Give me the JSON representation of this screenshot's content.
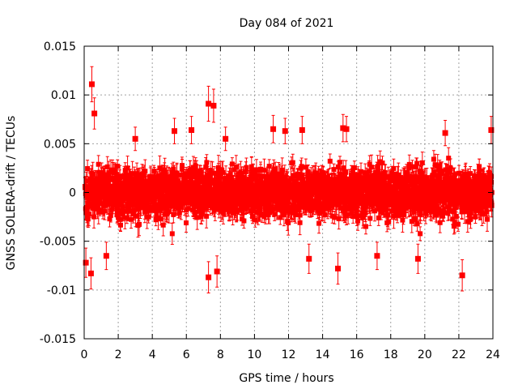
{
  "chart_data": {
    "type": "scatter",
    "title": "Day 084 of 2021",
    "xlabel": "GPS time / hours",
    "ylabel": "GNSS SOLERA-drift / TECUs",
    "xlim": [
      0,
      24
    ],
    "ylim": [
      -0.015,
      0.015
    ],
    "x_ticks": [
      0,
      2,
      4,
      6,
      8,
      10,
      12,
      14,
      16,
      18,
      20,
      22,
      24
    ],
    "x_tick_labels": [
      "0",
      "2",
      "4",
      "6",
      "8",
      "10",
      "12",
      "14",
      "16",
      "18",
      "20",
      "22",
      "24"
    ],
    "y_ticks": [
      -0.015,
      -0.01,
      -0.005,
      0,
      0.005,
      0.01,
      0.015
    ],
    "y_tick_labels": [
      "-0.015",
      "-0.01",
      "-0.005",
      "0",
      "0.005",
      "0.01",
      "0.015"
    ],
    "grid": true,
    "marker_color": "#ff0000",
    "error_bars": true,
    "points": [
      {
        "x": 0.1,
        "y": -0.0072,
        "err": 0.0015
      },
      {
        "x": 0.45,
        "y": 0.0111,
        "err": 0.0018
      },
      {
        "x": 0.6,
        "y": 0.0081,
        "err": 0.0016
      },
      {
        "x": 0.4,
        "y": -0.0083,
        "err": 0.0016
      },
      {
        "x": 1.3,
        "y": -0.0065,
        "err": 0.0014
      },
      {
        "x": 3.0,
        "y": 0.0055,
        "err": 0.0012
      },
      {
        "x": 5.3,
        "y": 0.0063,
        "err": 0.0013
      },
      {
        "x": 6.3,
        "y": 0.0064,
        "err": 0.0014
      },
      {
        "x": 7.3,
        "y": 0.0091,
        "err": 0.0018
      },
      {
        "x": 7.6,
        "y": 0.0089,
        "err": 0.0017
      },
      {
        "x": 7.3,
        "y": -0.0087,
        "err": 0.0016
      },
      {
        "x": 7.8,
        "y": -0.0081,
        "err": 0.0016
      },
      {
        "x": 8.3,
        "y": 0.0055,
        "err": 0.0012
      },
      {
        "x": 11.1,
        "y": 0.0065,
        "err": 0.0014
      },
      {
        "x": 11.8,
        "y": 0.0063,
        "err": 0.0013
      },
      {
        "x": 12.8,
        "y": 0.0064,
        "err": 0.0014
      },
      {
        "x": 13.2,
        "y": -0.0068,
        "err": 0.0015
      },
      {
        "x": 15.2,
        "y": 0.0066,
        "err": 0.0014
      },
      {
        "x": 15.4,
        "y": 0.0065,
        "err": 0.0013
      },
      {
        "x": 14.9,
        "y": -0.0078,
        "err": 0.0016
      },
      {
        "x": 17.2,
        "y": -0.0065,
        "err": 0.0014
      },
      {
        "x": 19.6,
        "y": -0.0068,
        "err": 0.0015
      },
      {
        "x": 21.2,
        "y": 0.0061,
        "err": 0.0013
      },
      {
        "x": 22.2,
        "y": -0.0085,
        "err": 0.0016
      },
      {
        "x": 23.9,
        "y": 0.0064,
        "err": 0.0014
      }
    ],
    "bulk": {
      "x_range": [
        0.05,
        23.95
      ],
      "count": 2500,
      "y_sigma": 0.0021,
      "y_clip": 0.0055,
      "err_mean": 0.0009
    }
  }
}
